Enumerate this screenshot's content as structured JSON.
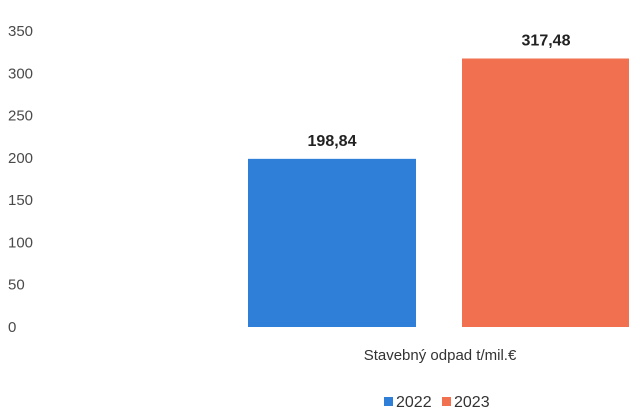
{
  "chart_data": {
    "type": "bar",
    "categories": [
      "Stavebný odpad t/mil.€"
    ],
    "series": [
      {
        "name": "2022",
        "values": [
          198.84
        ],
        "labels": [
          "198,84"
        ],
        "color": "#2f7ed8"
      },
      {
        "name": "2023",
        "values": [
          317.48
        ],
        "labels": [
          "317,48"
        ],
        "color": "#f07050"
      }
    ],
    "title": "",
    "xlabel": "",
    "ylabel": "",
    "ylim": [
      0,
      350
    ],
    "yticks": [
      0,
      50,
      100,
      150,
      200,
      250,
      300,
      350
    ],
    "grid": false,
    "legend": "bottom"
  }
}
